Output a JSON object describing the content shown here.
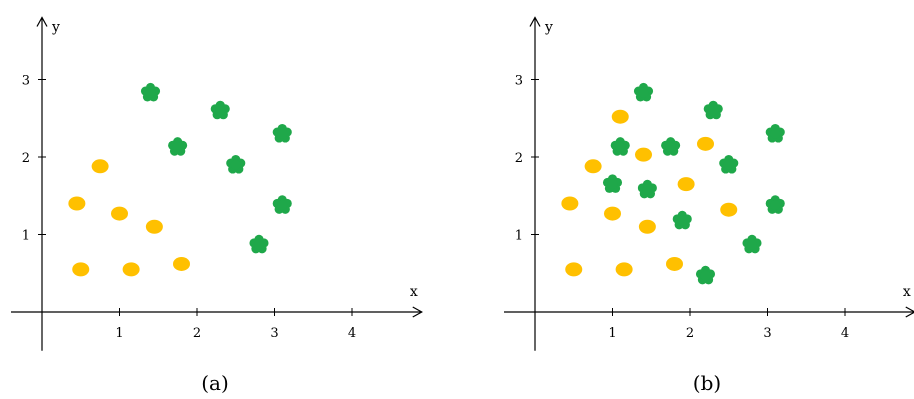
{
  "colors": {
    "class_a": "#ffc000",
    "class_b": "#1fa84a",
    "axis": "#000000"
  },
  "chart_data": [
    {
      "type": "scatter",
      "caption": "(a)",
      "xlabel": "x",
      "ylabel": "y",
      "x_ticks": [
        1,
        2,
        3,
        4
      ],
      "y_ticks": [
        1,
        2,
        3
      ],
      "xlim": [
        -0.4,
        4.9
      ],
      "ylim": [
        -0.5,
        3.8
      ],
      "grid": false,
      "series": [
        {
          "marker": "ellipse",
          "color": "#ffc000",
          "points": [
            [
              0.5,
              0.55
            ],
            [
              1.15,
              0.55
            ],
            [
              1.8,
              0.62
            ],
            [
              0.45,
              1.4
            ],
            [
              1.0,
              1.27
            ],
            [
              1.45,
              1.1
            ],
            [
              0.75,
              1.88
            ]
          ]
        },
        {
          "marker": "flower",
          "color": "#1fa84a",
          "points": [
            [
              1.4,
              2.83
            ],
            [
              1.75,
              2.13
            ],
            [
              2.3,
              2.6
            ],
            [
              2.5,
              1.9
            ],
            [
              3.1,
              2.3
            ],
            [
              3.1,
              1.38
            ],
            [
              2.8,
              0.87
            ]
          ]
        }
      ]
    },
    {
      "type": "scatter",
      "caption": "(b)",
      "xlabel": "x",
      "ylabel": "y",
      "x_ticks": [
        1,
        2,
        3,
        4
      ],
      "y_ticks": [
        1,
        2,
        3
      ],
      "xlim": [
        -0.4,
        4.9
      ],
      "ylim": [
        -0.5,
        3.8
      ],
      "grid": false,
      "series": [
        {
          "marker": "ellipse",
          "color": "#ffc000",
          "points": [
            [
              0.5,
              0.55
            ],
            [
              1.15,
              0.55
            ],
            [
              1.8,
              0.62
            ],
            [
              0.45,
              1.4
            ],
            [
              1.0,
              1.27
            ],
            [
              1.45,
              1.1
            ],
            [
              0.75,
              1.88
            ],
            [
              1.1,
              2.52
            ],
            [
              1.4,
              2.03
            ],
            [
              2.2,
              2.17
            ],
            [
              1.95,
              1.65
            ],
            [
              2.5,
              1.32
            ]
          ]
        },
        {
          "marker": "flower",
          "color": "#1fa84a",
          "points": [
            [
              1.4,
              2.83
            ],
            [
              1.75,
              2.13
            ],
            [
              2.3,
              2.6
            ],
            [
              2.5,
              1.9
            ],
            [
              3.1,
              2.3
            ],
            [
              3.1,
              1.38
            ],
            [
              2.8,
              0.87
            ],
            [
              1.1,
              2.13
            ],
            [
              1.0,
              1.65
            ],
            [
              1.45,
              1.58
            ],
            [
              1.9,
              1.18
            ],
            [
              2.2,
              0.47
            ]
          ]
        }
      ]
    }
  ]
}
